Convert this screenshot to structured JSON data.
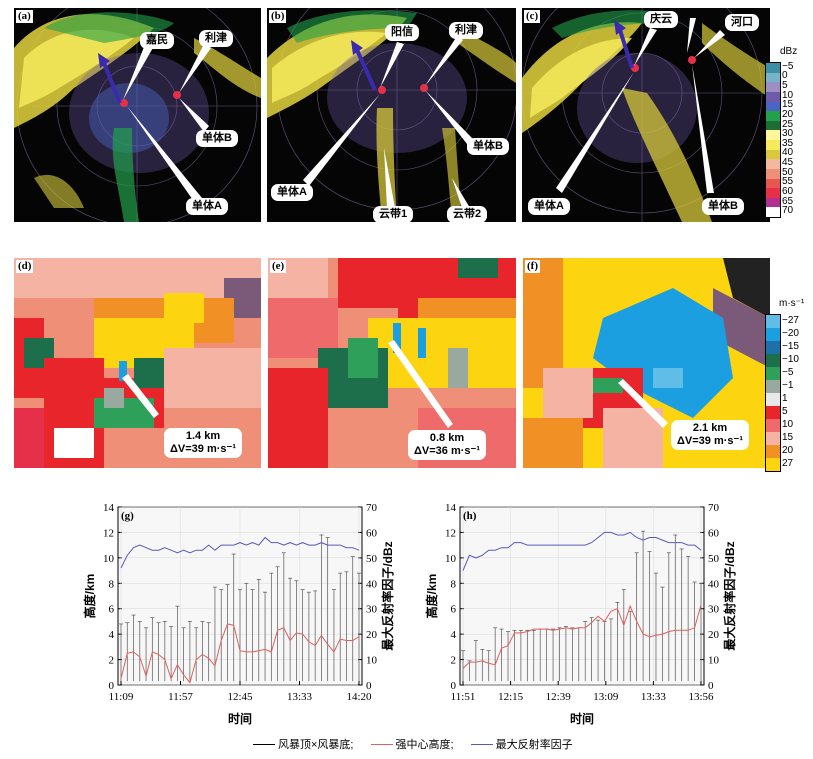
{
  "radar_panels": [
    {
      "label": "(a)",
      "callouts": [
        "嘉民",
        "利津",
        "单体B",
        "单体A"
      ]
    },
    {
      "label": "(b)",
      "callouts": [
        "阳信",
        "利津",
        "单体B",
        "单体A",
        "云带1",
        "云带2"
      ]
    },
    {
      "label": "(c)",
      "callouts": [
        "庆云",
        "河口",
        "单体A",
        "单体B"
      ]
    }
  ],
  "velocity_panels": [
    {
      "label": "(d)",
      "distance": "1.4 km",
      "dv": "ΔV=39 m·s⁻¹"
    },
    {
      "label": "(e)",
      "distance": "0.8 km",
      "dv": "ΔV=36 m·s⁻¹"
    },
    {
      "label": "(f)",
      "distance": "2.1 km",
      "dv": "ΔV=39 m·s⁻¹"
    }
  ],
  "dbz_colorbar": {
    "title": "dBz",
    "labels": [
      "−5",
      "0",
      "5",
      "10",
      "15",
      "20",
      "25",
      "30",
      "35",
      "40",
      "45",
      "50",
      "55",
      "60",
      "65",
      "70"
    ],
    "colors": [
      "#3d8fa6",
      "#77b3c8",
      "#9b8fc4",
      "#6e5aa8",
      "#4a66c4",
      "#22a04a",
      "#1d6e36",
      "#fff799",
      "#f4ea5c",
      "#d7c93b",
      "#f2b8a0",
      "#ef8f78",
      "#e6584e",
      "#e6304a",
      "#b4308f",
      "#ffffff"
    ]
  },
  "vel_colorbar": {
    "title": "m·s⁻¹",
    "labels": [
      "−27",
      "−20",
      "−15",
      "−10",
      "−5",
      "−1",
      "1",
      "5",
      "10",
      "15",
      "20",
      "27"
    ],
    "colors": [
      "#5fbde8",
      "#1c9fe0",
      "#1c72a8",
      "#1d6e4a",
      "#2fa05a",
      "#9aa9a0",
      "#e8e8e8",
      "#e8252a",
      "#ef6a6a",
      "#f4b3a3",
      "#f19025",
      "#fcd40f"
    ]
  },
  "chart_data": [
    {
      "type": "line",
      "panel": "(g)",
      "x_ticks": [
        "11:09",
        "11:57",
        "12:45",
        "13:33",
        "14:20"
      ],
      "xlabel": "时间",
      "ylabel_left": "高度/km",
      "ylabel_right": "最大反射率因子/dBz",
      "ylim_left": [
        0,
        14
      ],
      "ylim_right": [
        0,
        70
      ],
      "y_ticks_left": [
        0,
        2,
        4,
        6,
        8,
        10,
        12,
        14
      ],
      "y_ticks_right": [
        0,
        10,
        20,
        30,
        40,
        50,
        60,
        70
      ],
      "grid": true,
      "n_points": 39,
      "series": [
        {
          "name": "风暴顶×风暴底",
          "color": "#000000",
          "kind": "range",
          "tops": [
            4.8,
            4.9,
            5.5,
            5.0,
            4.5,
            5.3,
            4.9,
            5.0,
            4.6,
            6.2,
            4.5,
            5.0,
            4.5,
            5.0,
            4.9,
            7.7,
            7.5,
            7.9,
            10.3,
            7.5,
            8.0,
            7.5,
            8.3,
            7.3,
            8.8,
            9.3,
            10.4,
            8.4,
            8.2,
            7.5,
            7.3,
            7.4,
            11.8,
            11.6,
            7.5,
            8.8,
            8.9,
            10.1,
            8.8
          ],
          "bases": [
            0.3,
            0.3,
            0.3,
            0.3,
            0.3,
            0.3,
            0.3,
            0.3,
            0.3,
            0.3,
            0.3,
            0.3,
            0.3,
            0.3,
            0.3,
            0.3,
            0.3,
            0.3,
            0.3,
            0.3,
            0.3,
            0.3,
            0.3,
            0.3,
            0.3,
            0.3,
            0.3,
            0.3,
            0.3,
            0.3,
            0.3,
            0.3,
            0.3,
            0.3,
            0.3,
            0.3,
            0.3,
            0.3,
            0.3
          ]
        },
        {
          "name": "强中心高度",
          "color": "#e06060",
          "kind": "line",
          "values": [
            0.5,
            2.5,
            2.6,
            2.2,
            0.7,
            2.6,
            2.4,
            2.0,
            0.5,
            1.6,
            0.8,
            0.2,
            2.0,
            2.4,
            2.1,
            1.5,
            3.5,
            4.8,
            4.7,
            2.7,
            2.6,
            2.6,
            2.7,
            2.8,
            2.6,
            4.3,
            4.5,
            3.5,
            4.1,
            4.0,
            3.4,
            3.1,
            3.9,
            3.2,
            2.6,
            3.6,
            3.5,
            3.5,
            3.8
          ]
        },
        {
          "name": "最大反射率因子",
          "color": "#5a5ab5",
          "kind": "line",
          "axis": "right",
          "values": [
            46,
            51,
            54,
            55,
            54,
            53,
            53,
            54,
            53,
            52,
            53,
            52,
            53,
            53,
            55,
            53,
            55,
            55,
            55,
            56,
            55,
            56,
            55,
            58,
            56,
            56,
            55,
            56,
            55,
            56,
            55,
            55,
            56,
            55,
            55,
            55,
            54,
            54,
            53
          ]
        }
      ]
    },
    {
      "type": "line",
      "panel": "(h)",
      "x_ticks": [
        "11:51",
        "12:15",
        "12:39",
        "13:09",
        "13:33",
        "13:56"
      ],
      "xlabel": "时间",
      "ylabel_left": "高度/km",
      "ylabel_right": "最大反射率因子/dBz",
      "ylim_left": [
        0,
        14
      ],
      "ylim_right": [
        0,
        70
      ],
      "y_ticks_left": [
        0,
        2,
        4,
        6,
        8,
        10,
        12,
        14
      ],
      "y_ticks_right": [
        0,
        10,
        20,
        30,
        40,
        50,
        60,
        70
      ],
      "grid": true,
      "n_points": 38,
      "series": [
        {
          "name": "风暴顶×风暴底",
          "color": "#000000",
          "kind": "range",
          "tops": [
            2.7,
            1.9,
            3.5,
            2.8,
            2.7,
            4.5,
            4.4,
            4.2,
            4.3,
            4.3,
            4.3,
            4.3,
            4.4,
            4.4,
            4.4,
            4.5,
            4.6,
            4.5,
            4.5,
            5.0,
            5.3,
            5.1,
            5.0,
            5.2,
            6.5,
            7.5,
            5.8,
            10.4,
            12.1,
            10.5,
            8.8,
            7.7,
            10.4,
            11.8,
            10.7,
            10.1,
            8.1,
            8.0
          ],
          "bases": [
            0.3,
            0.3,
            0.3,
            0.3,
            0.3,
            0.3,
            0.3,
            0.3,
            0.3,
            0.3,
            0.3,
            0.3,
            0.3,
            0.3,
            0.3,
            0.3,
            0.3,
            0.3,
            0.3,
            0.3,
            0.3,
            0.3,
            0.3,
            0.3,
            0.3,
            0.3,
            0.3,
            0.3,
            0.3,
            0.3,
            0.3,
            0.3,
            0.3,
            0.3,
            0.3,
            0.3,
            0.3,
            0.3
          ]
        },
        {
          "name": "强中心高度",
          "color": "#e06060",
          "kind": "line",
          "values": [
            1.3,
            1.8,
            1.8,
            1.9,
            1.7,
            1.6,
            2.9,
            3.1,
            4.1,
            4.1,
            4.2,
            4.4,
            4.4,
            4.4,
            4.3,
            4.4,
            4.5,
            4.4,
            4.5,
            4.5,
            4.9,
            5.4,
            5.0,
            5.8,
            6.0,
            4.7,
            6.2,
            5.0,
            4.0,
            3.8,
            3.9,
            4.0,
            4.2,
            4.3,
            4.3,
            4.3,
            4.5,
            6.3
          ]
        },
        {
          "name": "最大反射率因子",
          "color": "#5a5ab5",
          "kind": "line",
          "axis": "right",
          "values": [
            45,
            51,
            50,
            51,
            53,
            53,
            54,
            54,
            56,
            56,
            55,
            55,
            55,
            55,
            55,
            55,
            55,
            55,
            55,
            55,
            56,
            58,
            60,
            60,
            59,
            59,
            60,
            58,
            57,
            58,
            58,
            57,
            56,
            56,
            56,
            55,
            55,
            53
          ]
        }
      ]
    }
  ],
  "legend": {
    "items": [
      "风暴顶×风暴底;",
      "强中心高度;",
      "最大反射率因子"
    ]
  }
}
